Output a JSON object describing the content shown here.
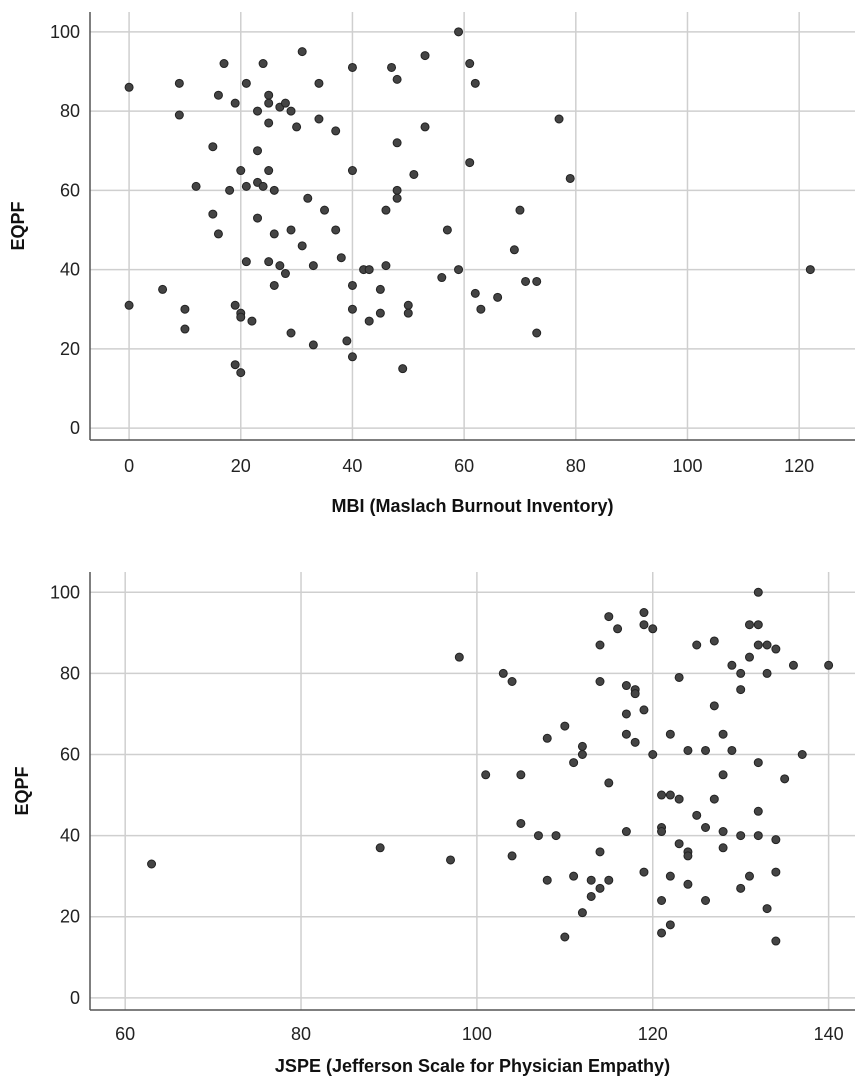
{
  "chart_data": [
    {
      "type": "scatter",
      "xlabel": "MBI (Maslach Burnout Inventory)",
      "ylabel": "EQPF",
      "xlim": [
        -7,
        130
      ],
      "ylim": [
        -3,
        105
      ],
      "xticks": [
        0,
        20,
        40,
        60,
        80,
        100,
        120
      ],
      "yticks": [
        0,
        20,
        40,
        60,
        80,
        100
      ],
      "grid": true,
      "points": [
        [
          0,
          86
        ],
        [
          0,
          31
        ],
        [
          6,
          35
        ],
        [
          9,
          87
        ],
        [
          9,
          79
        ],
        [
          10,
          30
        ],
        [
          10,
          25
        ],
        [
          12,
          61
        ],
        [
          15,
          71
        ],
        [
          15,
          54
        ],
        [
          16,
          84
        ],
        [
          16,
          49
        ],
        [
          17,
          92
        ],
        [
          18,
          60
        ],
        [
          19,
          82
        ],
        [
          19,
          31
        ],
        [
          19,
          16
        ],
        [
          20,
          29
        ],
        [
          20,
          28
        ],
        [
          20,
          65
        ],
        [
          20,
          14
        ],
        [
          21,
          87
        ],
        [
          21,
          61
        ],
        [
          21,
          42
        ],
        [
          22,
          27
        ],
        [
          23,
          80
        ],
        [
          23,
          70
        ],
        [
          23,
          62
        ],
        [
          23,
          53
        ],
        [
          24,
          92
        ],
        [
          24,
          61
        ],
        [
          25,
          84
        ],
        [
          25,
          82
        ],
        [
          25,
          77
        ],
        [
          25,
          65
        ],
        [
          25,
          42
        ],
        [
          26,
          60
        ],
        [
          26,
          49
        ],
        [
          26,
          36
        ],
        [
          27,
          81
        ],
        [
          27,
          41
        ],
        [
          28,
          82
        ],
        [
          28,
          39
        ],
        [
          29,
          80
        ],
        [
          29,
          50
        ],
        [
          29,
          24
        ],
        [
          30,
          76
        ],
        [
          31,
          95
        ],
        [
          31,
          46
        ],
        [
          32,
          58
        ],
        [
          33,
          41
        ],
        [
          33,
          21
        ],
        [
          34,
          87
        ],
        [
          34,
          78
        ],
        [
          35,
          55
        ],
        [
          37,
          75
        ],
        [
          37,
          50
        ],
        [
          38,
          43
        ],
        [
          39,
          22
        ],
        [
          40,
          91
        ],
        [
          40,
          65
        ],
        [
          40,
          36
        ],
        [
          40,
          30
        ],
        [
          40,
          18
        ],
        [
          42,
          40
        ],
        [
          43,
          40
        ],
        [
          43,
          27
        ],
        [
          45,
          35
        ],
        [
          45,
          29
        ],
        [
          46,
          55
        ],
        [
          46,
          41
        ],
        [
          47,
          91
        ],
        [
          48,
          88
        ],
        [
          48,
          72
        ],
        [
          48,
          60
        ],
        [
          48,
          58
        ],
        [
          49,
          15
        ],
        [
          50,
          31
        ],
        [
          50,
          29
        ],
        [
          51,
          64
        ],
        [
          53,
          94
        ],
        [
          53,
          76
        ],
        [
          56,
          38
        ],
        [
          57,
          50
        ],
        [
          59,
          100
        ],
        [
          59,
          40
        ],
        [
          61,
          92
        ],
        [
          61,
          67
        ],
        [
          62,
          87
        ],
        [
          62,
          34
        ],
        [
          63,
          30
        ],
        [
          66,
          33
        ],
        [
          69,
          45
        ],
        [
          70,
          55
        ],
        [
          71,
          37
        ],
        [
          73,
          37
        ],
        [
          73,
          24
        ],
        [
          77,
          78
        ],
        [
          79,
          63
        ],
        [
          122,
          40
        ]
      ]
    },
    {
      "type": "scatter",
      "xlabel": "JSPE (Jefferson Scale for Physician Empathy)",
      "ylabel": "EQPF",
      "xlim": [
        56,
        143
      ],
      "ylim": [
        -3,
        105
      ],
      "xticks": [
        60,
        80,
        100,
        120,
        140
      ],
      "yticks": [
        0,
        20,
        40,
        60,
        80,
        100
      ],
      "grid": true,
      "points": [
        [
          63,
          33
        ],
        [
          89,
          37
        ],
        [
          97,
          34
        ],
        [
          98,
          84
        ],
        [
          101,
          55
        ],
        [
          103,
          80
        ],
        [
          104,
          78
        ],
        [
          104,
          35
        ],
        [
          105,
          55
        ],
        [
          105,
          43
        ],
        [
          107,
          40
        ],
        [
          108,
          64
        ],
        [
          108,
          29
        ],
        [
          109,
          40
        ],
        [
          110,
          67
        ],
        [
          110,
          15
        ],
        [
          111,
          58
        ],
        [
          111,
          30
        ],
        [
          112,
          62
        ],
        [
          112,
          60
        ],
        [
          112,
          21
        ],
        [
          113,
          29
        ],
        [
          113,
          25
        ],
        [
          114,
          87
        ],
        [
          114,
          78
        ],
        [
          114,
          36
        ],
        [
          114,
          27
        ],
        [
          115,
          94
        ],
        [
          115,
          53
        ],
        [
          115,
          29
        ],
        [
          116,
          91
        ],
        [
          117,
          77
        ],
        [
          117,
          70
        ],
        [
          117,
          65
        ],
        [
          117,
          41
        ],
        [
          118,
          76
        ],
        [
          118,
          75
        ],
        [
          118,
          63
        ],
        [
          119,
          95
        ],
        [
          119,
          92
        ],
        [
          119,
          71
        ],
        [
          119,
          31
        ],
        [
          120,
          91
        ],
        [
          120,
          60
        ],
        [
          121,
          50
        ],
        [
          121,
          42
        ],
        [
          121,
          41
        ],
        [
          121,
          24
        ],
        [
          121,
          16
        ],
        [
          122,
          65
        ],
        [
          122,
          50
        ],
        [
          122,
          30
        ],
        [
          122,
          18
        ],
        [
          123,
          79
        ],
        [
          123,
          49
        ],
        [
          123,
          38
        ],
        [
          124,
          61
        ],
        [
          124,
          36
        ],
        [
          124,
          35
        ],
        [
          124,
          28
        ],
        [
          125,
          87
        ],
        [
          125,
          45
        ],
        [
          126,
          61
        ],
        [
          126,
          42
        ],
        [
          126,
          24
        ],
        [
          127,
          88
        ],
        [
          127,
          72
        ],
        [
          127,
          49
        ],
        [
          128,
          65
        ],
        [
          128,
          55
        ],
        [
          128,
          41
        ],
        [
          128,
          37
        ],
        [
          129,
          82
        ],
        [
          129,
          61
        ],
        [
          130,
          80
        ],
        [
          130,
          76
        ],
        [
          130,
          40
        ],
        [
          130,
          27
        ],
        [
          131,
          92
        ],
        [
          131,
          84
        ],
        [
          131,
          30
        ],
        [
          132,
          100
        ],
        [
          132,
          92
        ],
        [
          132,
          87
        ],
        [
          132,
          58
        ],
        [
          132,
          46
        ],
        [
          132,
          40
        ],
        [
          133,
          87
        ],
        [
          133,
          80
        ],
        [
          133,
          22
        ],
        [
          134,
          86
        ],
        [
          134,
          39
        ],
        [
          134,
          31
        ],
        [
          134,
          14
        ],
        [
          135,
          54
        ],
        [
          136,
          82
        ],
        [
          137,
          60
        ],
        [
          140,
          82
        ]
      ]
    }
  ]
}
